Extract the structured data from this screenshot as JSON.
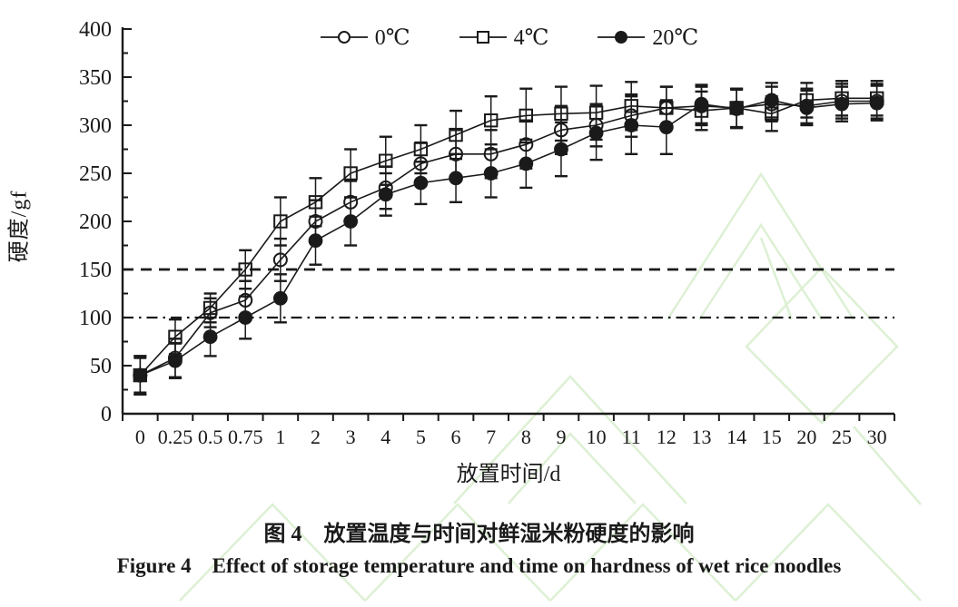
{
  "figure": {
    "ink_color": "#1a1a1a",
    "background_color": "#ffffff",
    "watermark_color": "#ddf0d4"
  },
  "chart_data": {
    "type": "line",
    "title": "图 4　放置温度与时间对鲜湿米粉硬度的影响",
    "title_en": "Figure 4　Effect of storage temperature and time on hardness of wet rice noodles",
    "xlabel": "放置时间/d",
    "ylabel": "硬度/gf",
    "ylim": [
      0,
      400
    ],
    "ytick_interval": 50,
    "ytick_minor_interval": 25,
    "grid": false,
    "legend_position": "top-center",
    "error_bars": true,
    "categories": [
      "0",
      "0.25",
      "0.5",
      "0.75",
      "1",
      "2",
      "3",
      "4",
      "5",
      "6",
      "7",
      "8",
      "9",
      "10",
      "11",
      "12",
      "13",
      "14",
      "15",
      "20",
      "25",
      "30"
    ],
    "series": [
      {
        "name": "0℃",
        "marker": "open-circle",
        "values": [
          40,
          58,
          105,
          118,
          160,
          200,
          220,
          235,
          260,
          270,
          270,
          280,
          295,
          300,
          310,
          318,
          320,
          318,
          322,
          320,
          325,
          325
        ],
        "errors": [
          20,
          20,
          15,
          20,
          22,
          22,
          22,
          22,
          22,
          25,
          25,
          25,
          25,
          22,
          22,
          22,
          20,
          20,
          18,
          18,
          18,
          18
        ]
      },
      {
        "name": "4℃",
        "marker": "open-square",
        "values": [
          40,
          80,
          110,
          150,
          200,
          220,
          250,
          263,
          275,
          290,
          305,
          310,
          312,
          313,
          320,
          318,
          315,
          318,
          312,
          326,
          328,
          328
        ],
        "errors": [
          20,
          18,
          15,
          20,
          25,
          25,
          25,
          25,
          25,
          25,
          25,
          28,
          28,
          28,
          25,
          22,
          20,
          20,
          18,
          18,
          18,
          18
        ]
      },
      {
        "name": "20℃",
        "marker": "filled-circle",
        "values": [
          40,
          55,
          80,
          100,
          120,
          180,
          200,
          228,
          240,
          245,
          250,
          260,
          275,
          292,
          300,
          298,
          322,
          317,
          326,
          318,
          322,
          323
        ],
        "errors": [
          18,
          18,
          20,
          22,
          25,
          25,
          25,
          22,
          22,
          25,
          25,
          25,
          28,
          28,
          30,
          28,
          20,
          20,
          18,
          18,
          18,
          18
        ]
      }
    ],
    "reference_lines": [
      {
        "value": 150,
        "style": "dashed"
      },
      {
        "value": 100,
        "style": "dash-dot"
      }
    ]
  }
}
